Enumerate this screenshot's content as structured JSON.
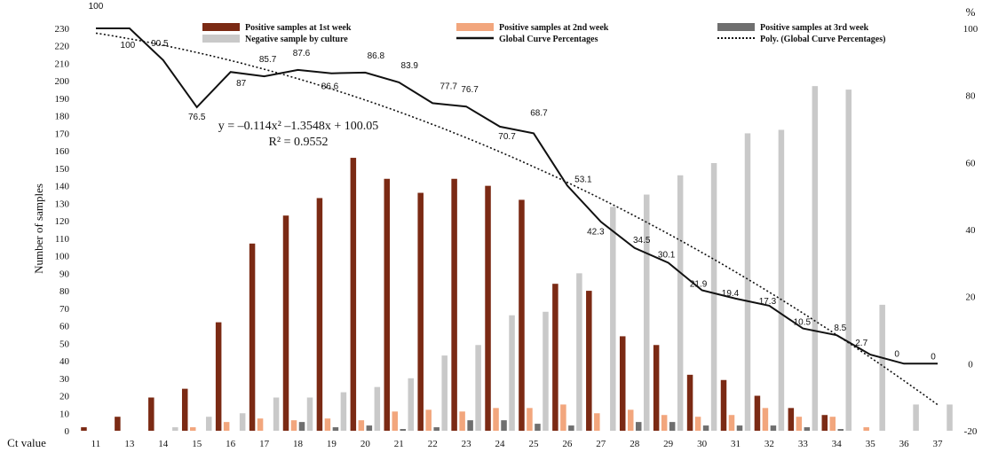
{
  "chart_data": {
    "type": "bar",
    "xlabel": "Ct value",
    "ylabel": "Number of samples",
    "y2label": "%",
    "categories": [
      "11",
      "13",
      "14",
      "15",
      "16",
      "17",
      "18",
      "19",
      "20",
      "21",
      "22",
      "23",
      "24",
      "25",
      "26",
      "27",
      "28",
      "29",
      "30",
      "31",
      "32",
      "33",
      "34",
      "35",
      "36",
      "37"
    ],
    "ylim": [
      0,
      230
    ],
    "yticks": [
      0,
      10,
      20,
      30,
      40,
      50,
      60,
      70,
      80,
      90,
      100,
      110,
      120,
      130,
      140,
      150,
      160,
      170,
      180,
      190,
      200,
      210,
      220,
      230
    ],
    "y2lim": [
      -20,
      100
    ],
    "y2ticks": [
      -20,
      0,
      20,
      40,
      60,
      80,
      100
    ],
    "series": [
      {
        "name": "Positive samples at 1st week",
        "color": "#7b2a14",
        "values": [
          2,
          8,
          19,
          24,
          62,
          107,
          123,
          133,
          156,
          144,
          136,
          144,
          140,
          132,
          84,
          80,
          54,
          49,
          32,
          29,
          20,
          13,
          9,
          0,
          0,
          0
        ]
      },
      {
        "name": "Positive samples at 2nd week",
        "color": "#f2a67d",
        "values": [
          0,
          0,
          0,
          2,
          5,
          7,
          6,
          7,
          6,
          11,
          12,
          11,
          13,
          13,
          15,
          10,
          12,
          9,
          8,
          9,
          13,
          8,
          8,
          2,
          0,
          0
        ]
      },
      {
        "name": "Positive samples at 3rd week",
        "color": "#6f6f6f",
        "values": [
          0,
          0,
          0,
          0,
          0,
          0,
          5,
          2,
          3,
          1,
          2,
          6,
          6,
          4,
          3,
          0,
          5,
          5,
          3,
          3,
          3,
          2,
          1,
          0,
          0,
          0
        ]
      },
      {
        "name": "Negative sample by culture",
        "color": "#c9c9c9",
        "values": [
          0,
          0,
          2,
          8,
          10,
          19,
          19,
          22,
          25,
          30,
          43,
          49,
          66,
          68,
          90,
          128,
          135,
          146,
          153,
          170,
          172,
          197,
          195,
          72,
          15,
          15
        ]
      }
    ],
    "line_series": {
      "name": "Global Curve Percentages",
      "color": "#111111",
      "axis": "y2",
      "values": [
        100,
        100,
        90.5,
        76.5,
        87,
        85.7,
        87.6,
        86.6,
        86.8,
        83.9,
        77.7,
        76.7,
        70.7,
        68.7,
        53.1,
        42.3,
        34.5,
        30.1,
        21.9,
        19.4,
        17.3,
        10.5,
        8.5,
        2.7,
        0,
        0
      ]
    },
    "trendline": {
      "name": "Poly. (Global Curve Percentages)",
      "style": "dotted",
      "color": "#111111",
      "coefficients": [
        -0.114,
        -1.3548,
        100.05
      ],
      "equation": "y = –0.114x² –1.3548x + 100.05",
      "r2": "R² = 0.9552"
    },
    "grid": false,
    "legend_position": "top"
  }
}
